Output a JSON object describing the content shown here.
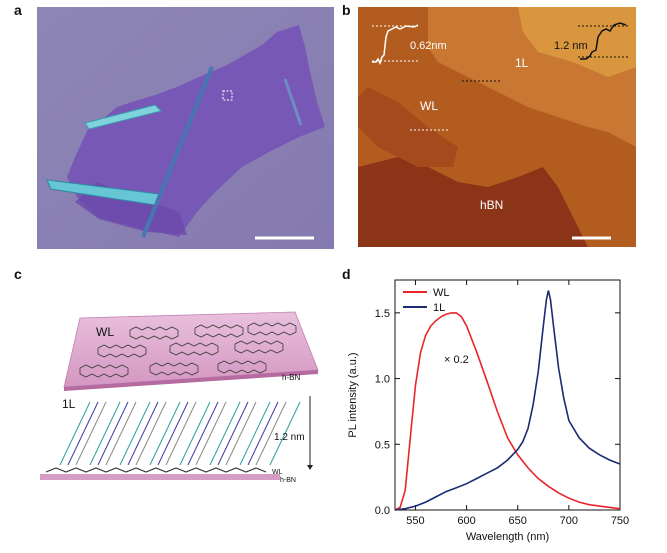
{
  "panels": {
    "a": {
      "letter": "a"
    },
    "b": {
      "letter": "b",
      "step_left": "0.62nm",
      "step_right": "1.2 nm",
      "label_1l": "1L",
      "label_wl": "WL",
      "label_hbn": "hBN"
    },
    "c": {
      "letter": "c",
      "label_wl": "WL",
      "label_hbn_top": "h-BN",
      "label_1l": "1L",
      "height": "1.2 nm",
      "label_wl_bottom": "WL",
      "label_hbn_bottom": "h-BN"
    },
    "d": {
      "letter": "d",
      "annotation": "× 0.2"
    }
  },
  "chart_data": {
    "type": "line",
    "xlabel": "Wavelength (nm)",
    "ylabel": "PL intensity (a.u.)",
    "xlim": [
      530,
      750
    ],
    "ylim": [
      0,
      1.75
    ],
    "xticks": [
      550,
      600,
      650,
      700,
      750
    ],
    "yticks": [
      0.0,
      0.5,
      1.0,
      1.5
    ],
    "legend": "top-left",
    "series": [
      {
        "name": "WL",
        "color": "#e8262a",
        "x": [
          530,
          535,
          540,
          545,
          550,
          555,
          560,
          565,
          570,
          575,
          580,
          585,
          590,
          595,
          600,
          610,
          620,
          630,
          640,
          650,
          660,
          670,
          680,
          690,
          700,
          710,
          720,
          730,
          740,
          750
        ],
        "y": [
          0.0,
          0.02,
          0.15,
          0.55,
          0.95,
          1.2,
          1.33,
          1.4,
          1.44,
          1.47,
          1.49,
          1.5,
          1.5,
          1.47,
          1.4,
          1.2,
          0.98,
          0.75,
          0.55,
          0.42,
          0.32,
          0.24,
          0.18,
          0.13,
          0.09,
          0.06,
          0.04,
          0.03,
          0.02,
          0.01
        ]
      },
      {
        "name": "1L",
        "color": "#1c2a72",
        "x": [
          530,
          540,
          550,
          560,
          570,
          580,
          590,
          600,
          610,
          620,
          630,
          640,
          650,
          655,
          660,
          665,
          670,
          675,
          678,
          680,
          682,
          685,
          690,
          695,
          700,
          710,
          720,
          730,
          740,
          750
        ],
        "y": [
          0.0,
          0.01,
          0.03,
          0.06,
          0.1,
          0.14,
          0.17,
          0.2,
          0.24,
          0.28,
          0.32,
          0.38,
          0.46,
          0.52,
          0.62,
          0.8,
          1.05,
          1.4,
          1.6,
          1.67,
          1.6,
          1.4,
          1.08,
          0.85,
          0.68,
          0.55,
          0.47,
          0.42,
          0.38,
          0.35
        ]
      }
    ]
  }
}
